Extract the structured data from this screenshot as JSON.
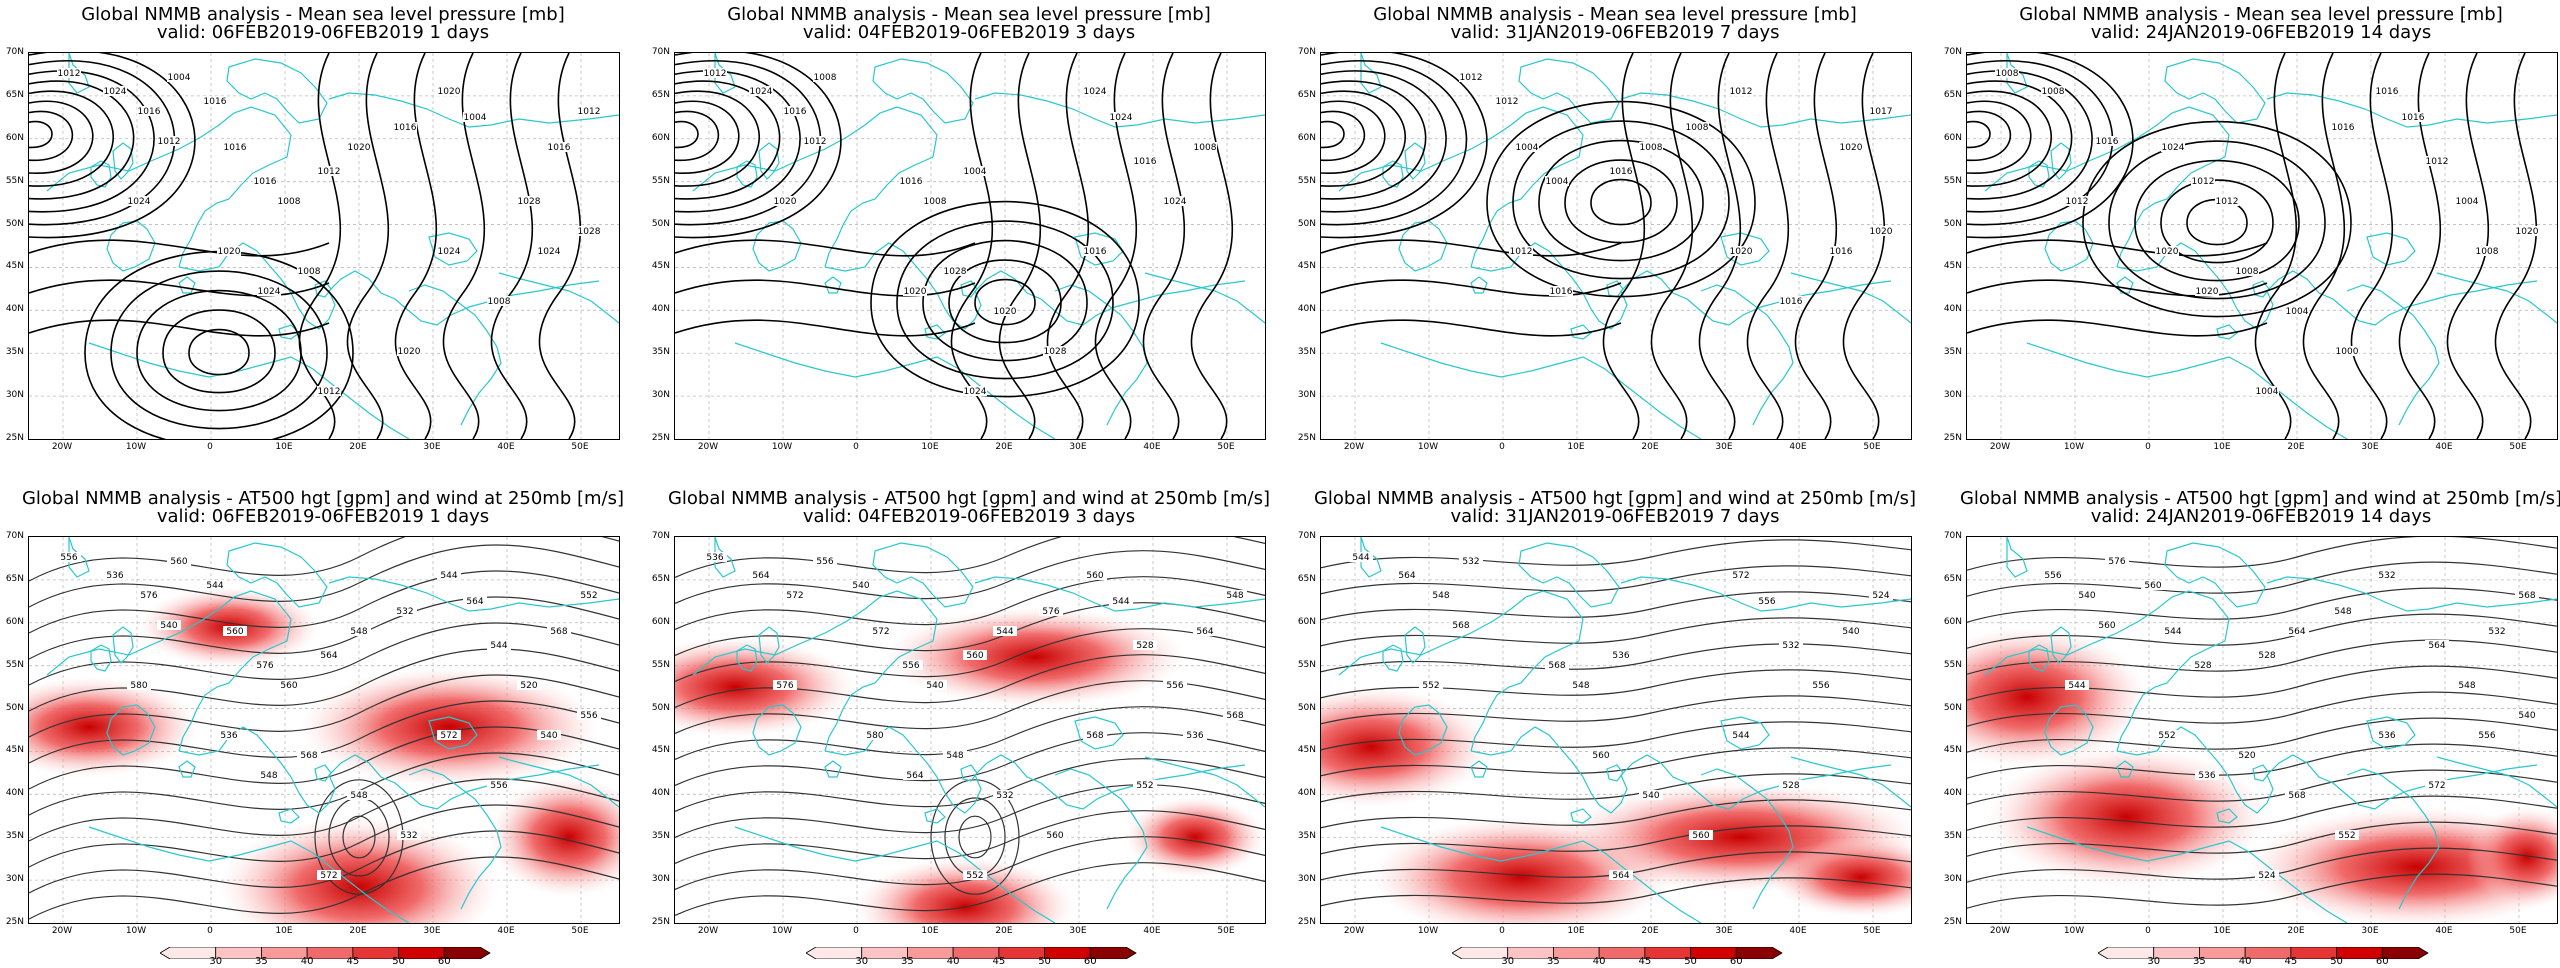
{
  "lat_labels": [
    "70N",
    "65N",
    "60N",
    "55N",
    "50N",
    "45N",
    "40N",
    "35N",
    "30N",
    "25N"
  ],
  "lon_labels": [
    "20W",
    "10W",
    "0",
    "10E",
    "20E",
    "30E",
    "40E",
    "50E"
  ],
  "colorbar": {
    "ticks": [
      "30",
      "35",
      "40",
      "45",
      "50",
      "60"
    ],
    "colors": [
      "#ffe8e8",
      "#fcc4c4",
      "#f79a9a",
      "#ef6a6a",
      "#e53535",
      "#d10000",
      "#8a0000"
    ]
  },
  "colors": {
    "coast": "#29c8cc",
    "contour": "#000000",
    "jet": "#e53535"
  },
  "panels": [
    {
      "title": "Global NMMB analysis - Mean sea level pressure [mb]",
      "valid": "valid: 06FEB2019-06FEB2019  1 days",
      "labels": [
        "1012",
        "1008",
        "1004",
        "1008",
        "1012",
        "1016",
        "1020",
        "1024",
        "1028",
        "1016",
        "1016",
        "1020",
        "1024",
        "1016",
        "1020",
        "1012",
        "1008",
        "1004",
        "1012",
        "1016",
        "1024",
        "1016",
        "1024",
        "1028",
        "1020",
        "1024",
        "1012"
      ]
    },
    {
      "title": "Global NMMB analysis - Mean sea level pressure [mb]",
      "valid": "valid: 04FEB2019-06FEB2019  3 days",
      "labels": [
        "1008",
        "1004",
        "1008",
        "1016",
        "1016",
        "1020",
        "1024",
        "1028",
        "1024",
        "1012",
        "1016",
        "1020",
        "1012",
        "1008",
        "1024",
        "1028",
        "1024",
        "1016",
        "1024",
        "1020"
      ]
    },
    {
      "title": "Global NMMB analysis - Mean sea level pressure [mb]",
      "valid": "valid: 31JAN2019-06FEB2019  7 days",
      "labels": [
        "1004",
        "1012",
        "1016",
        "1020",
        "1004",
        "1008",
        "1012",
        "1016",
        "1012",
        "1008",
        "1017",
        "1016",
        "1012",
        "1016",
        "1020",
        "1020"
      ]
    },
    {
      "title": "Global NMMB analysis - Mean sea level pressure [mb]",
      "valid": "valid: 24JAN2019-06FEB2019  14 days",
      "labels": [
        "1012",
        "1004",
        "1000",
        "1008",
        "1016",
        "1012",
        "1004",
        "1008",
        "1012",
        "1016",
        "1008",
        "1004",
        "1012",
        "1016",
        "1020",
        "1020",
        "1024",
        "1016",
        "1020",
        "1008"
      ]
    },
    {
      "title": "Global NMMB analysis - AT500 hgt [gpm] and wind at 250mb [m/s]",
      "valid": "valid: 06FEB2019-06FEB2019  1 days",
      "labels": [
        "532",
        "536",
        "540",
        "544",
        "548",
        "552",
        "556",
        "560",
        "564",
        "568",
        "572",
        "576",
        "580",
        "520",
        "532",
        "536",
        "540",
        "544",
        "548",
        "556",
        "560",
        "564",
        "568",
        "572",
        "576",
        "544",
        "548",
        "556",
        "560"
      ]
    },
    {
      "title": "Global NMMB analysis - AT500 hgt [gpm] and wind at 250mb [m/s]",
      "valid": "valid: 04FEB2019-06FEB2019  3 days",
      "labels": [
        "528",
        "532",
        "536",
        "540",
        "544",
        "548",
        "552",
        "556",
        "560",
        "564",
        "568",
        "572",
        "576",
        "580",
        "536",
        "540",
        "544",
        "548",
        "552",
        "556",
        "560",
        "564",
        "568",
        "572",
        "576",
        "556",
        "560",
        "564"
      ]
    },
    {
      "title": "Global NMMB analysis - AT500 hgt [gpm] and wind at 250mb [m/s]",
      "valid": "valid: 31JAN2019-06FEB2019  7 days",
      "labels": [
        "524",
        "528",
        "532",
        "536",
        "540",
        "544",
        "548",
        "552",
        "556",
        "560",
        "564",
        "568",
        "532",
        "540",
        "544",
        "548",
        "556",
        "560",
        "564",
        "568",
        "572"
      ]
    },
    {
      "title": "Global NMMB analysis - AT500 hgt [gpm] and wind at 250mb [m/s]",
      "valid": "valid: 24JAN2019-06FEB2019  14 days",
      "labels": [
        "520",
        "524",
        "528",
        "532",
        "536",
        "540",
        "544",
        "548",
        "552",
        "556",
        "560",
        "564",
        "568",
        "572",
        "576",
        "528",
        "532",
        "536",
        "540",
        "544",
        "548",
        "552",
        "556",
        "560",
        "564",
        "568"
      ]
    }
  ]
}
